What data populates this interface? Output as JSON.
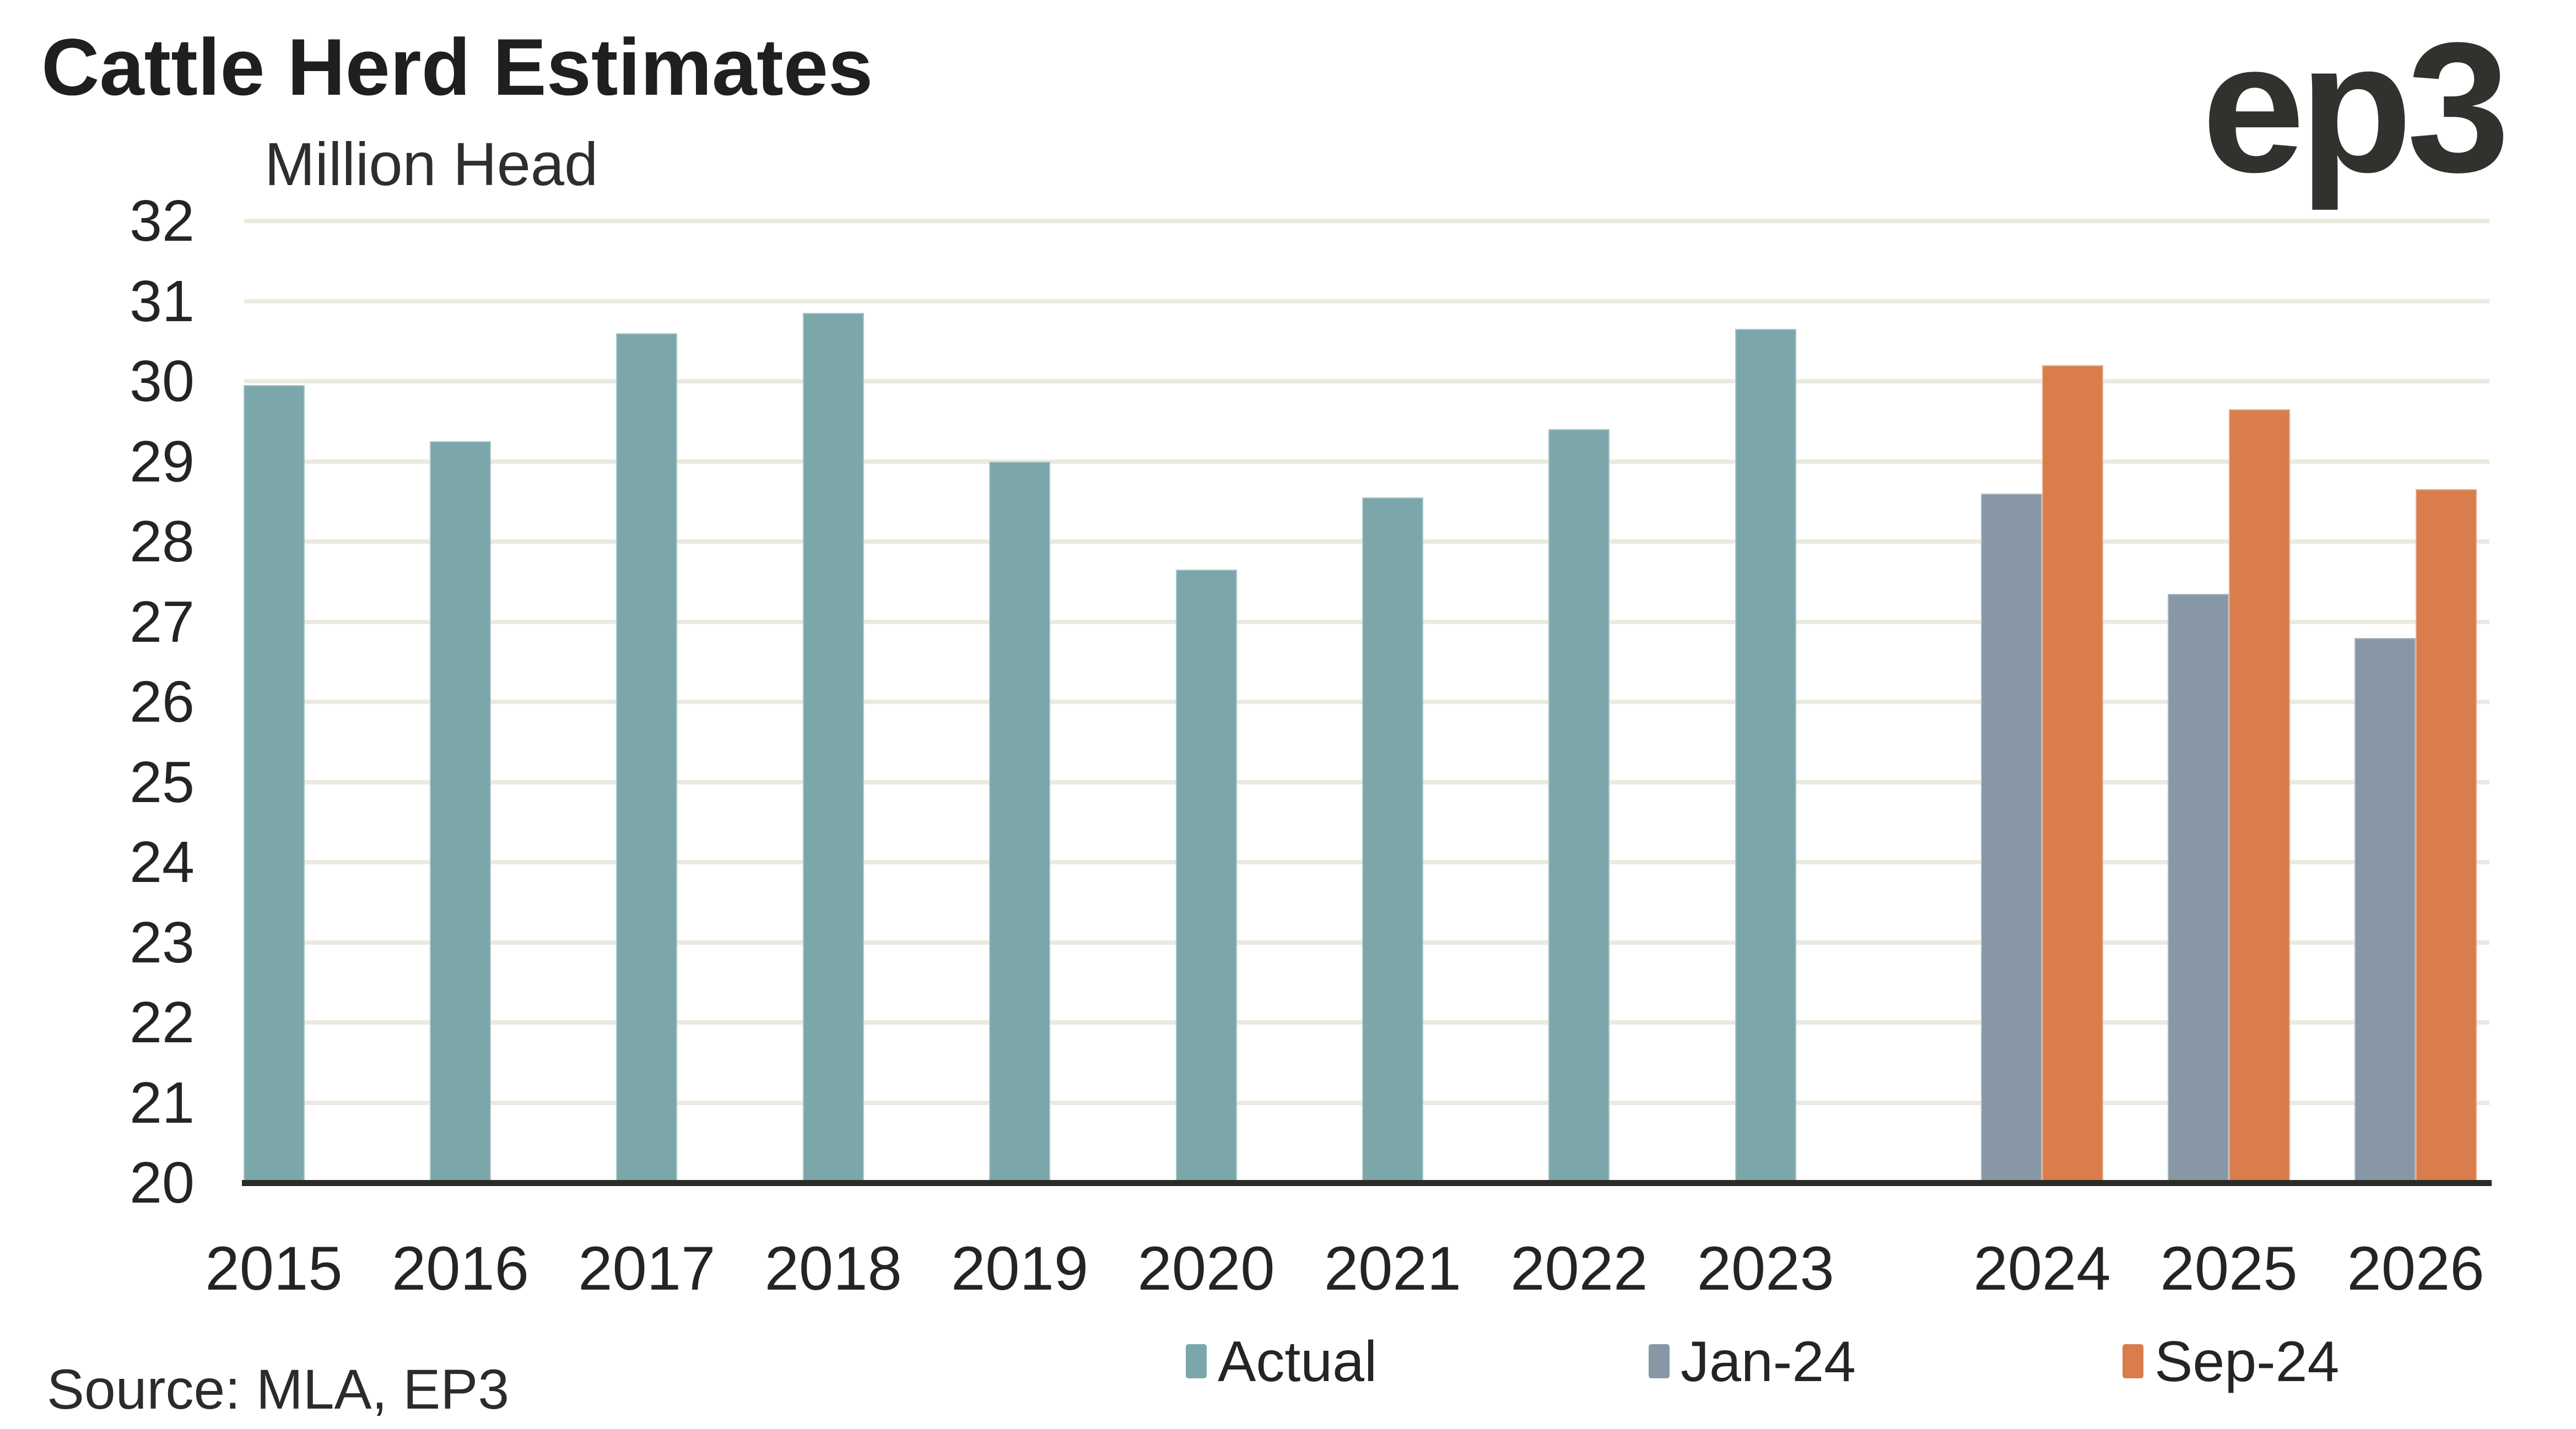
{
  "header": {
    "title": "Cattle Herd Estimates",
    "subtitle": "Million Head",
    "logo": "ep3"
  },
  "footer": {
    "source": "Source: MLA, EP3"
  },
  "colors": {
    "actual": "#7BA7AB",
    "jan24": "#8897A5",
    "sep24": "#D97D4C",
    "gridline": "#ECEAE0",
    "axis": "#2B2B28",
    "text": "#242424"
  },
  "chart_data": {
    "type": "bar",
    "title": "Cattle Herd Estimates",
    "xlabel": "",
    "ylabel": "Million Head",
    "ylim": [
      20,
      32
    ],
    "ytick_step": 1,
    "grid": true,
    "legend_position": "bottom",
    "categories": [
      "2015",
      "2016",
      "2017",
      "2018",
      "2019",
      "2020",
      "2021",
      "2022",
      "2023",
      "2024",
      "2025",
      "2026"
    ],
    "series": [
      {
        "name": "Actual",
        "color": "#7BA7AB",
        "values": [
          29.95,
          29.25,
          30.6,
          30.85,
          29.0,
          27.65,
          28.55,
          29.4,
          30.65,
          null,
          null,
          null
        ]
      },
      {
        "name": "Jan-24",
        "color": "#8897A5",
        "values": [
          null,
          null,
          null,
          null,
          null,
          null,
          null,
          null,
          null,
          28.6,
          27.35,
          26.8
        ]
      },
      {
        "name": "Sep-24",
        "color": "#D97D4C",
        "values": [
          null,
          null,
          null,
          null,
          null,
          null,
          null,
          null,
          null,
          30.2,
          29.65,
          28.65
        ]
      }
    ]
  }
}
